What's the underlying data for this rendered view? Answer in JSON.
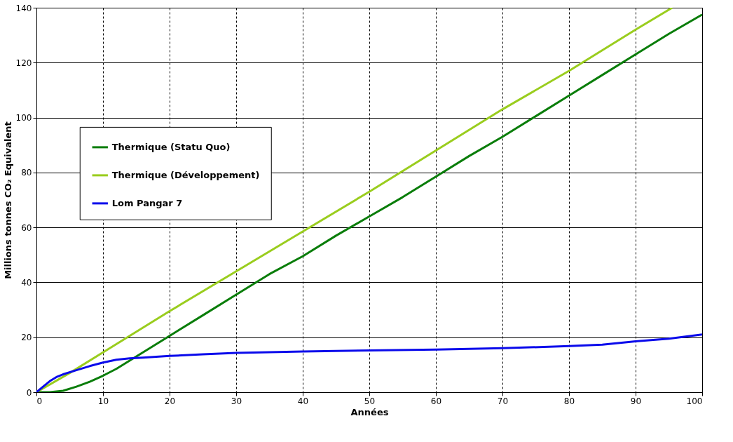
{
  "chart_data": {
    "type": "line",
    "xlabel": "Années",
    "ylabel": "Millions tonnes CO₂ Equivalent",
    "xlim": [
      0,
      100
    ],
    "ylim": [
      0,
      140
    ],
    "xticks": [
      0,
      10,
      20,
      30,
      40,
      50,
      60,
      70,
      80,
      90,
      100
    ],
    "yticks": [
      0,
      20,
      40,
      60,
      80,
      100,
      120,
      140
    ],
    "grid": true,
    "legend": "left",
    "line_style": "solid",
    "marker": "none",
    "series": [
      {
        "name": "Thermique (Statu Quo)",
        "color": "#0a7d0a",
        "x": [
          0,
          2,
          4,
          6,
          8,
          10,
          12,
          14,
          16,
          18,
          20,
          25,
          30,
          35,
          40,
          45,
          50,
          55,
          60,
          65,
          70,
          75,
          80,
          85,
          90,
          95,
          100
        ],
        "values": [
          0,
          0,
          0.5,
          2,
          3.8,
          6,
          8.5,
          11.5,
          14.5,
          17.5,
          20.5,
          28,
          35.5,
          43,
          49.5,
          57,
          64,
          71,
          78.5,
          86,
          93,
          100.5,
          108,
          115.5,
          123,
          130.5,
          137.5
        ]
      },
      {
        "name": "Thermique (Développement)",
        "color": "#9acd1e",
        "x": [
          0,
          5,
          10,
          20,
          30,
          40,
          50,
          60,
          70,
          80,
          90,
          95.5
        ],
        "values": [
          0,
          7,
          14.5,
          29.5,
          44,
          58.5,
          73,
          88,
          103,
          117,
          132,
          140
        ]
      },
      {
        "name": "Lom Pangar 7",
        "color": "#0a0aeb",
        "x": [
          0,
          1,
          2,
          3,
          4,
          6,
          8,
          10,
          12,
          14,
          16,
          20,
          25,
          30,
          40,
          50,
          60,
          70,
          80,
          85,
          90,
          95,
          100
        ],
        "values": [
          0,
          2,
          4,
          5.5,
          6.5,
          8,
          9.5,
          10.8,
          11.8,
          12.3,
          12.6,
          13.2,
          13.8,
          14.3,
          14.8,
          15.2,
          15.5,
          16,
          16.8,
          17.3,
          18.5,
          19.5,
          21
        ]
      }
    ]
  }
}
